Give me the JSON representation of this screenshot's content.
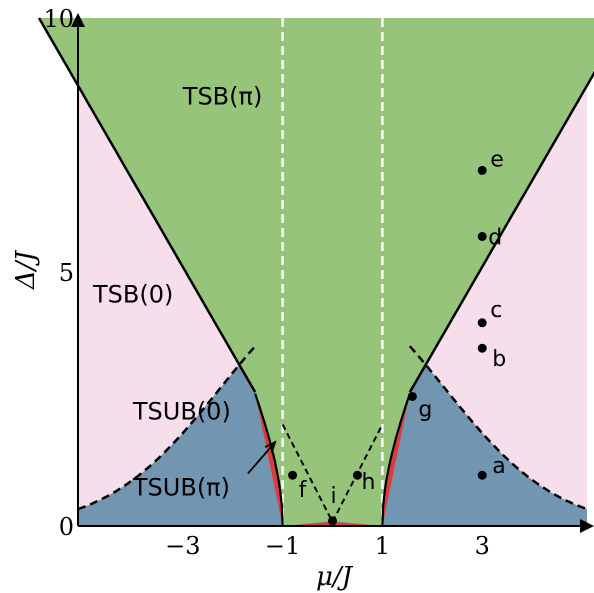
{
  "chart_data": {
    "type": "area",
    "xlabel": "μ/J",
    "ylabel": "Δ/J",
    "xlim": [
      -5.1,
      5.1
    ],
    "ylim": [
      0,
      10
    ],
    "x_ticks": [
      {
        "value": -3,
        "label": "−3"
      },
      {
        "value": -1,
        "label": "−1"
      },
      {
        "value": 1,
        "label": "1"
      },
      {
        "value": 3,
        "label": "3"
      }
    ],
    "y_ticks": [
      {
        "value": 0,
        "label": "0"
      },
      {
        "value": 5,
        "label": "5"
      },
      {
        "value": 10,
        "label": "10"
      }
    ],
    "colors": {
      "tsb_pi": "#96c47a",
      "tsb_0": "#f6dfeb",
      "tsub_0": "#7296b1",
      "tsub_pi": "#dd3c3c",
      "boundary": "#000000",
      "guide": "#ffffff"
    },
    "regions": [
      {
        "id": "tsb_pi",
        "label": "TSB(π)",
        "label_pos": [
          -3.0,
          8.3
        ]
      },
      {
        "id": "tsb_0",
        "label": "TSB(0)",
        "label_pos": [
          -4.8,
          4.4
        ]
      },
      {
        "id": "tsub_0",
        "label": "TSUB(0)",
        "label_pos": [
          -4.0,
          2.1
        ]
      },
      {
        "id": "tsub_pi",
        "label": "TSUB(π)",
        "label_pos": [
          -4.0,
          0.6
        ],
        "arrow_to": [
          -1.15,
          1.65
        ]
      }
    ],
    "guides": [
      -1,
      1
    ],
    "points": [
      {
        "label": "a",
        "x": 3.0,
        "y": 1.0
      },
      {
        "label": "b",
        "x": 3.0,
        "y": 3.5
      },
      {
        "label": "c",
        "x": 3.0,
        "y": 4.0
      },
      {
        "label": "d",
        "x": 3.0,
        "y": 5.7
      },
      {
        "label": "e",
        "x": 3.0,
        "y": 7.0
      },
      {
        "label": "f",
        "x": -0.8,
        "y": 1.0
      },
      {
        "label": "g",
        "x": 1.6,
        "y": 2.55
      },
      {
        "label": "h",
        "x": 0.5,
        "y": 1.0
      },
      {
        "label": "i",
        "x": 0.0,
        "y": 0.1
      }
    ]
  }
}
